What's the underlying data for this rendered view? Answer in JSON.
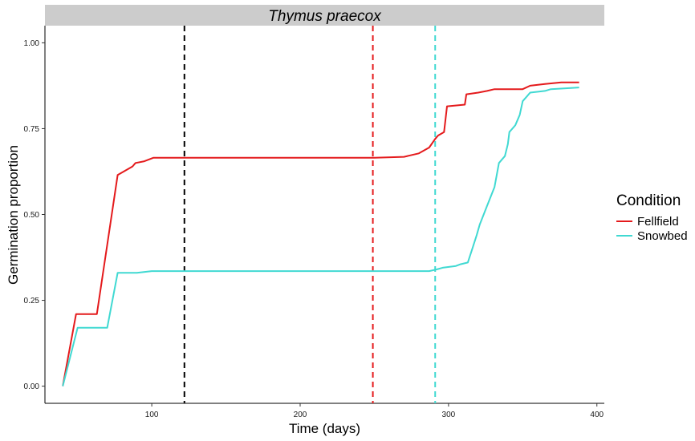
{
  "chart_data": {
    "type": "line",
    "title": "Thymus praecox",
    "xlabel": "Time (days)",
    "ylabel": "Germination proportion",
    "xlim": [
      28,
      405
    ],
    "ylim": [
      -0.05,
      1.05
    ],
    "x_ticks": [
      100,
      200,
      300,
      400
    ],
    "y_ticks": [
      0.0,
      0.25,
      0.5,
      0.75,
      1.0
    ],
    "x_tick_labels": [
      "100",
      "200",
      "300",
      "400"
    ],
    "y_tick_labels": [
      "0.00",
      "0.25",
      "0.50",
      "0.75",
      "1.00"
    ],
    "grid": false,
    "legend": {
      "title": "Condition",
      "position": "right"
    },
    "series": [
      {
        "name": "Fellfield",
        "color": "#e41a1c",
        "points": [
          [
            40,
            0.0
          ],
          [
            49,
            0.21
          ],
          [
            63,
            0.21
          ],
          [
            77,
            0.615
          ],
          [
            87,
            0.64
          ],
          [
            89,
            0.65
          ],
          [
            95,
            0.655
          ],
          [
            101,
            0.665
          ],
          [
            200,
            0.665
          ],
          [
            250,
            0.665
          ],
          [
            270,
            0.668
          ],
          [
            280,
            0.678
          ],
          [
            287,
            0.695
          ],
          [
            291,
            0.72
          ],
          [
            293,
            0.73
          ],
          [
            297,
            0.74
          ],
          [
            299,
            0.815
          ],
          [
            311,
            0.82
          ],
          [
            312,
            0.85
          ],
          [
            320,
            0.855
          ],
          [
            326,
            0.86
          ],
          [
            331,
            0.865
          ],
          [
            350,
            0.865
          ],
          [
            355,
            0.875
          ],
          [
            365,
            0.88
          ],
          [
            376,
            0.885
          ],
          [
            388,
            0.885
          ]
        ]
      },
      {
        "name": "Snowbed",
        "color": "#40d9d2",
        "points": [
          [
            40,
            0.0
          ],
          [
            50,
            0.17
          ],
          [
            70,
            0.17
          ],
          [
            77,
            0.33
          ],
          [
            90,
            0.33
          ],
          [
            100,
            0.335
          ],
          [
            200,
            0.335
          ],
          [
            250,
            0.335
          ],
          [
            287,
            0.335
          ],
          [
            292,
            0.34
          ],
          [
            296,
            0.345
          ],
          [
            305,
            0.35
          ],
          [
            308,
            0.355
          ],
          [
            313,
            0.36
          ],
          [
            316,
            0.4
          ],
          [
            319,
            0.44
          ],
          [
            321,
            0.47
          ],
          [
            326,
            0.525
          ],
          [
            331,
            0.58
          ],
          [
            334,
            0.65
          ],
          [
            338,
            0.67
          ],
          [
            340,
            0.705
          ],
          [
            341,
            0.74
          ],
          [
            345,
            0.76
          ],
          [
            348,
            0.79
          ],
          [
            350,
            0.83
          ],
          [
            353,
            0.845
          ],
          [
            355,
            0.855
          ],
          [
            365,
            0.86
          ],
          [
            369,
            0.865
          ],
          [
            388,
            0.87
          ]
        ]
      }
    ],
    "vlines": [
      {
        "x": 122,
        "color": "#000000",
        "style": "dashed"
      },
      {
        "x": 249,
        "color": "#e41a1c",
        "style": "dashed"
      },
      {
        "x": 291,
        "color": "#40d9d2",
        "style": "dashed"
      }
    ]
  }
}
